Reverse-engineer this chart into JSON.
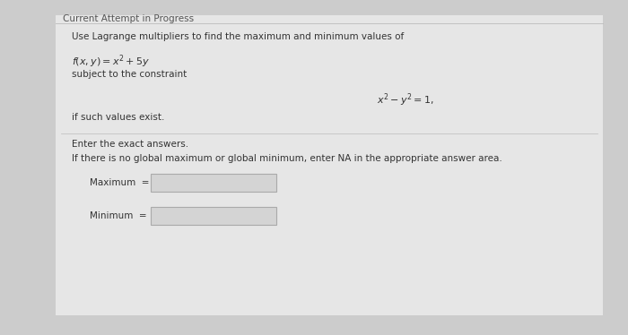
{
  "bg_color": "#cccccc",
  "panel_color": "#e6e6e6",
  "header_text": "Current Attempt in Progress",
  "header_fontsize": 7.5,
  "line1": "Use Lagrange multipliers to find the maximum and minimum values of",
  "line1_fontsize": 7.5,
  "func_text": "$f(x, y) = x^2 + 5y$",
  "func_fontsize": 8,
  "constraint_intro": "subject to the constraint",
  "constraint_intro_fontsize": 7.5,
  "constraint_eq": "$x^2 - y^2 = 1,$",
  "constraint_eq_fontsize": 8,
  "suffix_text": "if such values exist.",
  "suffix_fontsize": 7.5,
  "enter_text": "Enter the exact answers.",
  "enter_fontsize": 7.5,
  "na_text": "If there is no global maximum or global minimum, enter NA in the appropriate answer area.",
  "na_fontsize": 7.5,
  "max_label": "Maximum  =",
  "min_label": "Minimum  =",
  "label_fontsize": 7.5,
  "input_box_color": "#d4d4d4",
  "header_color": "#555555",
  "text_color": "#333333"
}
